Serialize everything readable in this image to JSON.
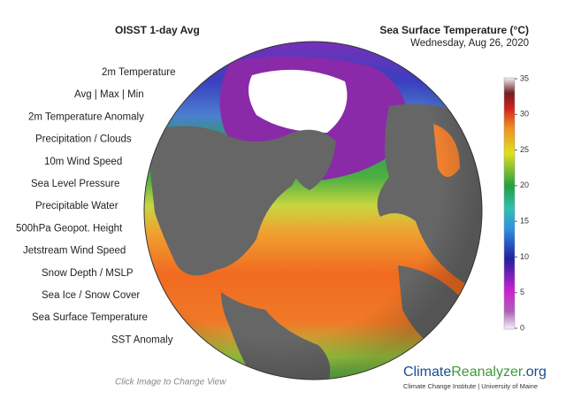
{
  "header": {
    "title": "OISST 1-day Avg",
    "map_title": "Sea Surface Temperature (°C)",
    "date": "Wednesday, Aug 26, 2020"
  },
  "menu": [
    "2m Temperature",
    "Avg  |  Max  |  Min",
    "2m Temperature Anomaly",
    "Precipitation / Clouds",
    "10m Wind Speed",
    "Sea Level Pressure",
    "Precipitable Water",
    "500hPa Geopot. Height",
    "Jetstream Wind Speed",
    "Snow Depth / MSLP",
    "Sea Ice / Snow Cover",
    "Sea Surface Temperature",
    "SST Anomaly"
  ],
  "active_menu": 11,
  "colorbar": {
    "ticks": [
      0,
      5,
      10,
      15,
      20,
      25,
      30,
      35
    ]
  },
  "footer": {
    "hint": "Click Image to Change View",
    "logo_climate": "Climate",
    "logo_reanalyzer": "Reanalyzer",
    "logo_org": ".org",
    "institute": "Climate Change Institute | University of Maine"
  }
}
